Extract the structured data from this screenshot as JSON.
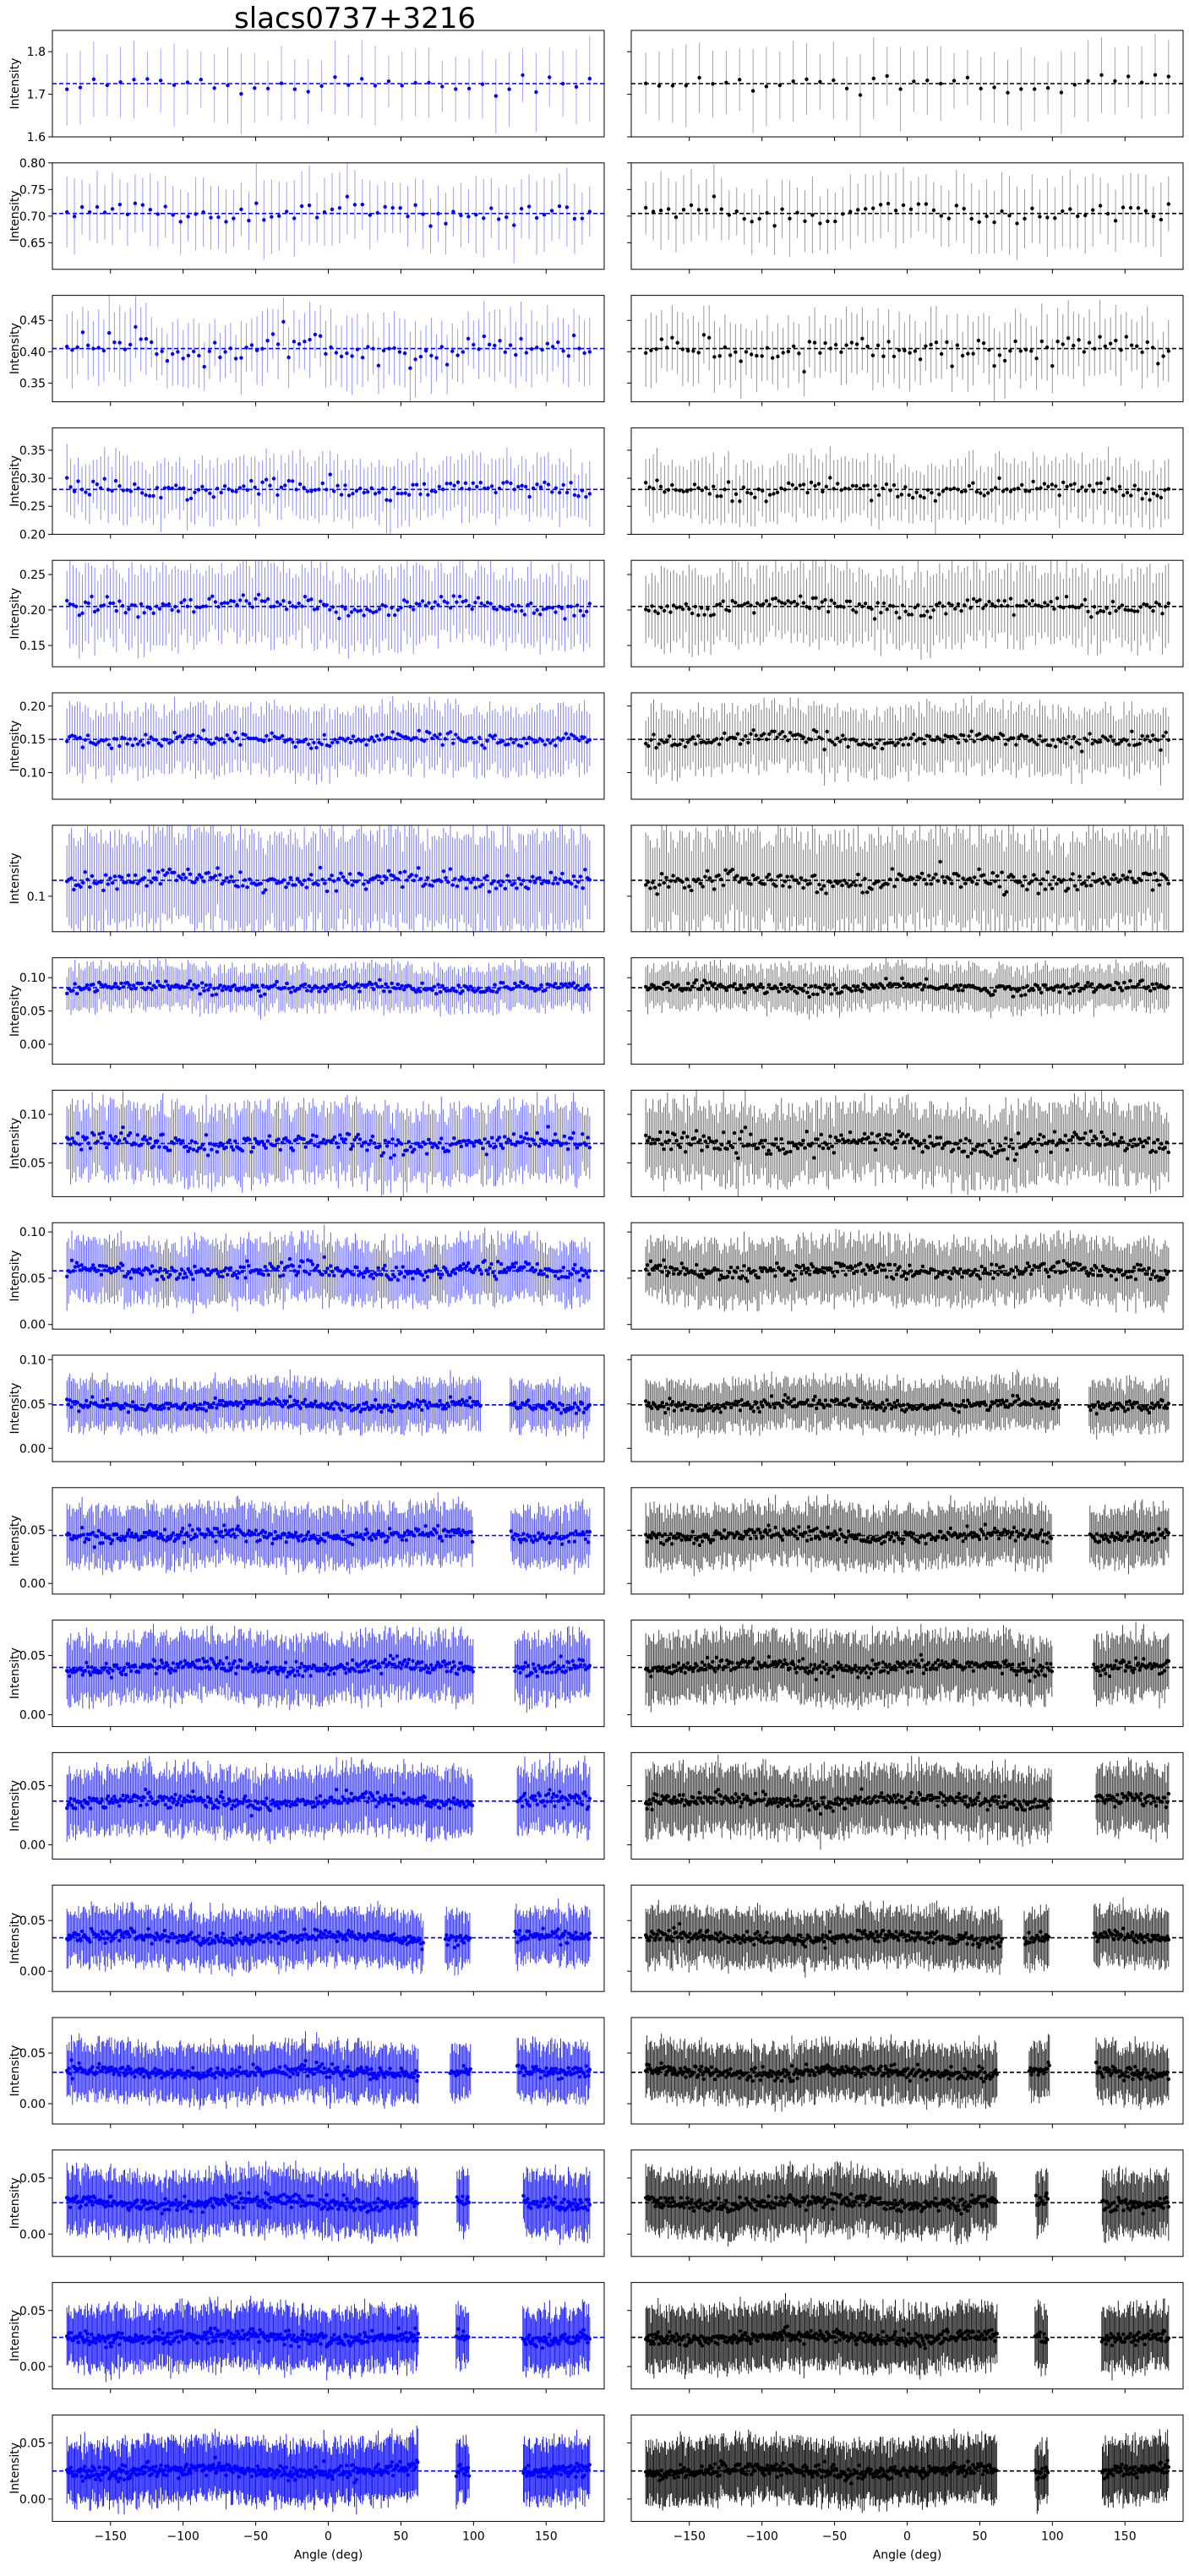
{
  "figure": {
    "title": "slacs0737+3216"
  },
  "chart_data": {
    "type": "scatter",
    "title": "slacs0737+3216",
    "xlabel": "Angle (deg)",
    "ylabel": "Intensity",
    "xlim": [
      -190,
      190
    ],
    "xticks": [
      -150,
      -100,
      -50,
      0,
      50,
      100,
      150
    ],
    "columns": [
      {
        "name": "left",
        "color": "#0000ff"
      },
      {
        "name": "right",
        "color": "#000000"
      }
    ],
    "shared_y_per_row": true,
    "rows": [
      {
        "mean": 1.725,
        "ylim": [
          1.6,
          1.85
        ],
        "yticks": [
          "1.6",
          "1.7",
          "1.8"
        ],
        "n_points": 40,
        "noise": 0.012,
        "err": 0.08,
        "gaps": []
      },
      {
        "mean": 0.705,
        "ylim": [
          0.6,
          0.8
        ],
        "yticks": [
          "0.65",
          "0.70",
          "0.75",
          "0.80"
        ],
        "n_points": 70,
        "noise": 0.01,
        "err": 0.06,
        "gaps": []
      },
      {
        "mean": 0.405,
        "ylim": [
          0.32,
          0.49
        ],
        "yticks": [
          "0.35",
          "0.40",
          "0.45"
        ],
        "n_points": 100,
        "noise": 0.01,
        "err": 0.05,
        "gaps": []
      },
      {
        "mean": 0.28,
        "ylim": [
          0.2,
          0.39
        ],
        "yticks": [
          "0.20",
          "0.25",
          "0.30",
          "0.35"
        ],
        "n_points": 140,
        "noise": 0.008,
        "err": 0.05,
        "gaps": []
      },
      {
        "mean": 0.205,
        "ylim": [
          0.12,
          0.27
        ],
        "yticks": [
          "0.15",
          "0.20",
          "0.25"
        ],
        "n_points": 170,
        "noise": 0.006,
        "err": 0.05,
        "gaps": []
      },
      {
        "mean": 0.15,
        "ylim": [
          0.06,
          0.22
        ],
        "yticks": [
          "0.10",
          "0.15",
          "0.20"
        ],
        "n_points": 200,
        "noise": 0.005,
        "err": 0.045,
        "gaps": []
      },
      {
        "mean": 0.118,
        "ylim": [
          0.06,
          0.18
        ],
        "yticks": [
          "0.1"
        ],
        "n_points": 230,
        "noise": 0.005,
        "err": 0.05,
        "gaps": []
      },
      {
        "mean": 0.085,
        "ylim": [
          -0.03,
          0.13
        ],
        "yticks": [
          "0.00",
          "0.05",
          "0.10"
        ],
        "n_points": 260,
        "noise": 0.004,
        "err": 0.03,
        "gaps": []
      },
      {
        "mean": 0.07,
        "ylim": [
          0.015,
          0.125
        ],
        "yticks": [
          "0.05",
          "0.10"
        ],
        "n_points": 290,
        "noise": 0.005,
        "err": 0.035,
        "gaps": []
      },
      {
        "mean": 0.058,
        "ylim": [
          -0.005,
          0.11
        ],
        "yticks": [
          "0.00",
          "0.05",
          "0.10"
        ],
        "n_points": 320,
        "noise": 0.004,
        "err": 0.03,
        "gaps": []
      },
      {
        "mean": 0.049,
        "ylim": [
          -0.015,
          0.105
        ],
        "yticks": [
          "0.00",
          "0.05",
          "0.10"
        ],
        "n_points": 350,
        "noise": 0.003,
        "err": 0.025,
        "gaps": [
          [
            105,
            125
          ]
        ]
      },
      {
        "mean": 0.045,
        "ylim": [
          -0.01,
          0.09
        ],
        "yticks": [
          "0.00",
          "0.05"
        ],
        "n_points": 380,
        "noise": 0.003,
        "err": 0.025,
        "gaps": [
          [
            100,
            125
          ]
        ]
      },
      {
        "mean": 0.04,
        "ylim": [
          -0.01,
          0.08
        ],
        "yticks": [
          "0.00",
          "0.05"
        ],
        "n_points": 400,
        "noise": 0.003,
        "err": 0.025,
        "gaps": [
          [
            100,
            128
          ]
        ]
      },
      {
        "mean": 0.037,
        "ylim": [
          -0.012,
          0.078
        ],
        "yticks": [
          "0.00",
          "0.05"
        ],
        "n_points": 420,
        "noise": 0.003,
        "err": 0.025,
        "gaps": [
          [
            100,
            130
          ]
        ]
      },
      {
        "mean": 0.033,
        "ylim": [
          -0.02,
          0.085
        ],
        "yticks": [
          "0.00",
          "0.05"
        ],
        "n_points": 450,
        "noise": 0.003,
        "err": 0.025,
        "gaps": [
          [
            66,
            80
          ],
          [
            98,
            128
          ]
        ]
      },
      {
        "mean": 0.031,
        "ylim": [
          -0.02,
          0.085
        ],
        "yticks": [
          "0.00",
          "0.05"
        ],
        "n_points": 470,
        "noise": 0.003,
        "err": 0.025,
        "gaps": [
          [
            62,
            84
          ],
          [
            98,
            130
          ]
        ]
      },
      {
        "mean": 0.028,
        "ylim": [
          -0.02,
          0.075
        ],
        "yticks": [
          "0.00",
          "0.05"
        ],
        "n_points": 490,
        "noise": 0.003,
        "err": 0.025,
        "gaps": [
          [
            62,
            88
          ],
          [
            97,
            134
          ]
        ]
      },
      {
        "mean": 0.026,
        "ylim": [
          -0.02,
          0.075
        ],
        "yticks": [
          "0.00",
          "0.05"
        ],
        "n_points": 510,
        "noise": 0.003,
        "err": 0.025,
        "gaps": [
          [
            62,
            88
          ],
          [
            97,
            134
          ]
        ]
      },
      {
        "mean": 0.025,
        "ylim": [
          -0.02,
          0.075
        ],
        "yticks": [
          "0.00",
          "0.05"
        ],
        "n_points": 530,
        "noise": 0.003,
        "err": 0.025,
        "gaps": [
          [
            62,
            88
          ],
          [
            97,
            134
          ]
        ]
      }
    ]
  }
}
